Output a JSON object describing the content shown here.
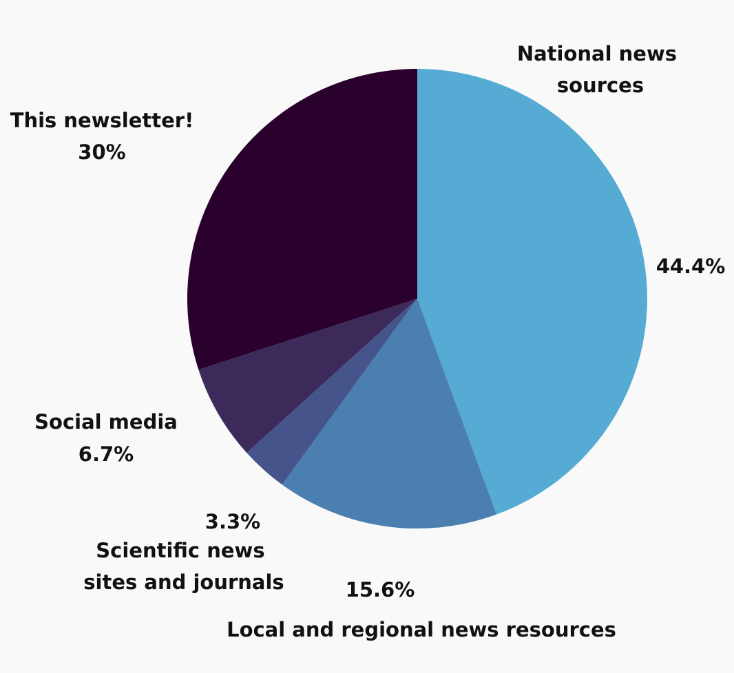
{
  "chart_data": {
    "type": "pie",
    "title": "",
    "legend": "none",
    "slices": [
      {
        "label": "National news sources",
        "value": 44.4,
        "value_label": "44.4%",
        "color": "#55abd3"
      },
      {
        "label": "Local and regional news resources",
        "value": 15.6,
        "value_label": "15.6%",
        "color": "#4a7fb0"
      },
      {
        "label": "Scientific news sites and journals",
        "value": 3.3,
        "value_label": "3.3%",
        "color": "#45548a"
      },
      {
        "label": "Social media",
        "value": 6.7,
        "value_label": "6.7%",
        "color": "#3c2b5a"
      },
      {
        "label": "This newsletter!",
        "value": 30,
        "value_label": "30%",
        "color": "#2a002d"
      }
    ]
  }
}
